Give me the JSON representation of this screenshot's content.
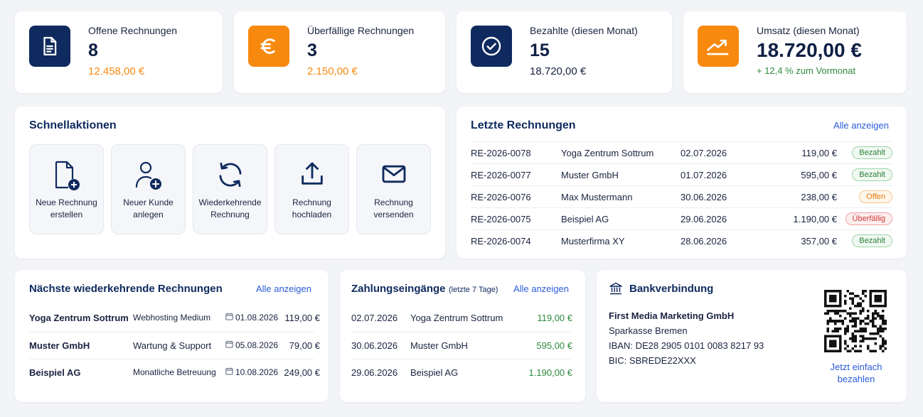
{
  "kpis": [
    {
      "label": "Offene Rechnungen",
      "value": "8",
      "sub": "12.458,00 €",
      "icon": "document-icon"
    },
    {
      "label": "Überfällige Rechnungen",
      "value": "3",
      "sub": "2.150,00 €",
      "icon": "euro-icon"
    },
    {
      "label": "Bezahlte (diesen Monat)",
      "value": "15",
      "sub": "18.720,00 €",
      "icon": "check-circle-icon"
    },
    {
      "label": "Umsatz (diesen Monat)",
      "value": "18.720,00 €",
      "sub": "+ 12,4 % zum Vormonat",
      "icon": "trend-up-icon"
    }
  ],
  "colors": {
    "navy": "#0f2a5e",
    "orange": "#f7890f",
    "green": "#2e8b3e",
    "link": "#2a5bd7"
  },
  "quick_actions": {
    "title": "Schnellaktionen",
    "items": [
      {
        "line1": "Neue Rechnung",
        "line2": "erstellen",
        "icon": "new-invoice-icon"
      },
      {
        "line1": "Neuer Kunde",
        "line2": "anlegen",
        "icon": "add-user-icon"
      },
      {
        "line1": "Wiederkehrende",
        "line2": "Rechnung",
        "icon": "refresh-icon"
      },
      {
        "line1": "Rechnung",
        "line2": "hochladen",
        "icon": "upload-icon"
      },
      {
        "line1": "Rechnung",
        "line2": "versenden",
        "icon": "mail-icon"
      }
    ]
  },
  "recent_invoices": {
    "title": "Letzte Rechnungen",
    "link": "Alle anzeigen",
    "rows": [
      {
        "number": "RE-2026-0078",
        "customer": "Yoga Zentrum Sottrum",
        "date": "02.07.2026",
        "amount": "119,00 €",
        "status": "Bezahlt",
        "status_type": "paid"
      },
      {
        "number": "RE-2026-0077",
        "customer": "Muster GmbH",
        "date": "01.07.2026",
        "amount": "595,00 €",
        "status": "Bezahlt",
        "status_type": "paid"
      },
      {
        "number": "RE-2026-0076",
        "customer": "Max Mustermann",
        "date": "30.06.2026",
        "amount": "238,00 €",
        "status": "Offen",
        "status_type": "open"
      },
      {
        "number": "RE-2026-0075",
        "customer": "Beispiel AG",
        "date": "29.06.2026",
        "amount": "1.190,00 €",
        "status": "Überfällig",
        "status_type": "overdue"
      },
      {
        "number": "RE-2026-0074",
        "customer": "Musterfirma XY",
        "date": "28.06.2026",
        "amount": "357,00 €",
        "status": "Bezahlt",
        "status_type": "paid"
      }
    ]
  },
  "recurring": {
    "title": "Nächste wiederkehrende Rechnungen",
    "link": "Alle anzeigen",
    "rows": [
      {
        "customer": "Yoga Zentrum Sottrum",
        "service": "Webhosting Medium",
        "date": "01.08.2026",
        "amount": "119,00 €"
      },
      {
        "customer": "Muster GmbH",
        "service": "Wartung & Support",
        "date": "05.08.2026",
        "amount": "79,00 €"
      },
      {
        "customer": "Beispiel AG",
        "service": "Monatliche Betreuung",
        "date": "10.08.2026",
        "amount": "249,00 €"
      }
    ]
  },
  "payments": {
    "title": "Zahlungseingänge",
    "title_suffix": "(letzte 7 Tage)",
    "link": "Alle anzeigen",
    "rows": [
      {
        "date": "02.07.2026",
        "customer": "Yoga Zentrum Sottrum",
        "amount": "119,00 €"
      },
      {
        "date": "30.06.2026",
        "customer": "Muster GmbH",
        "amount": "595,00 €"
      },
      {
        "date": "29.06.2026",
        "customer": "Beispiel AG",
        "amount": "1.190,00 €"
      }
    ]
  },
  "bank": {
    "title": "Bankverbindung",
    "company": "First Media Marketing GmbH",
    "bank_name": "Sparkasse Bremen",
    "iban": "IBAN: DE28 2905 0101 0083 8217 93",
    "bic": "BIC: SBREDE22XXX",
    "qr_label_1": "Jetzt einfach",
    "qr_label_2": "bezahlen"
  }
}
